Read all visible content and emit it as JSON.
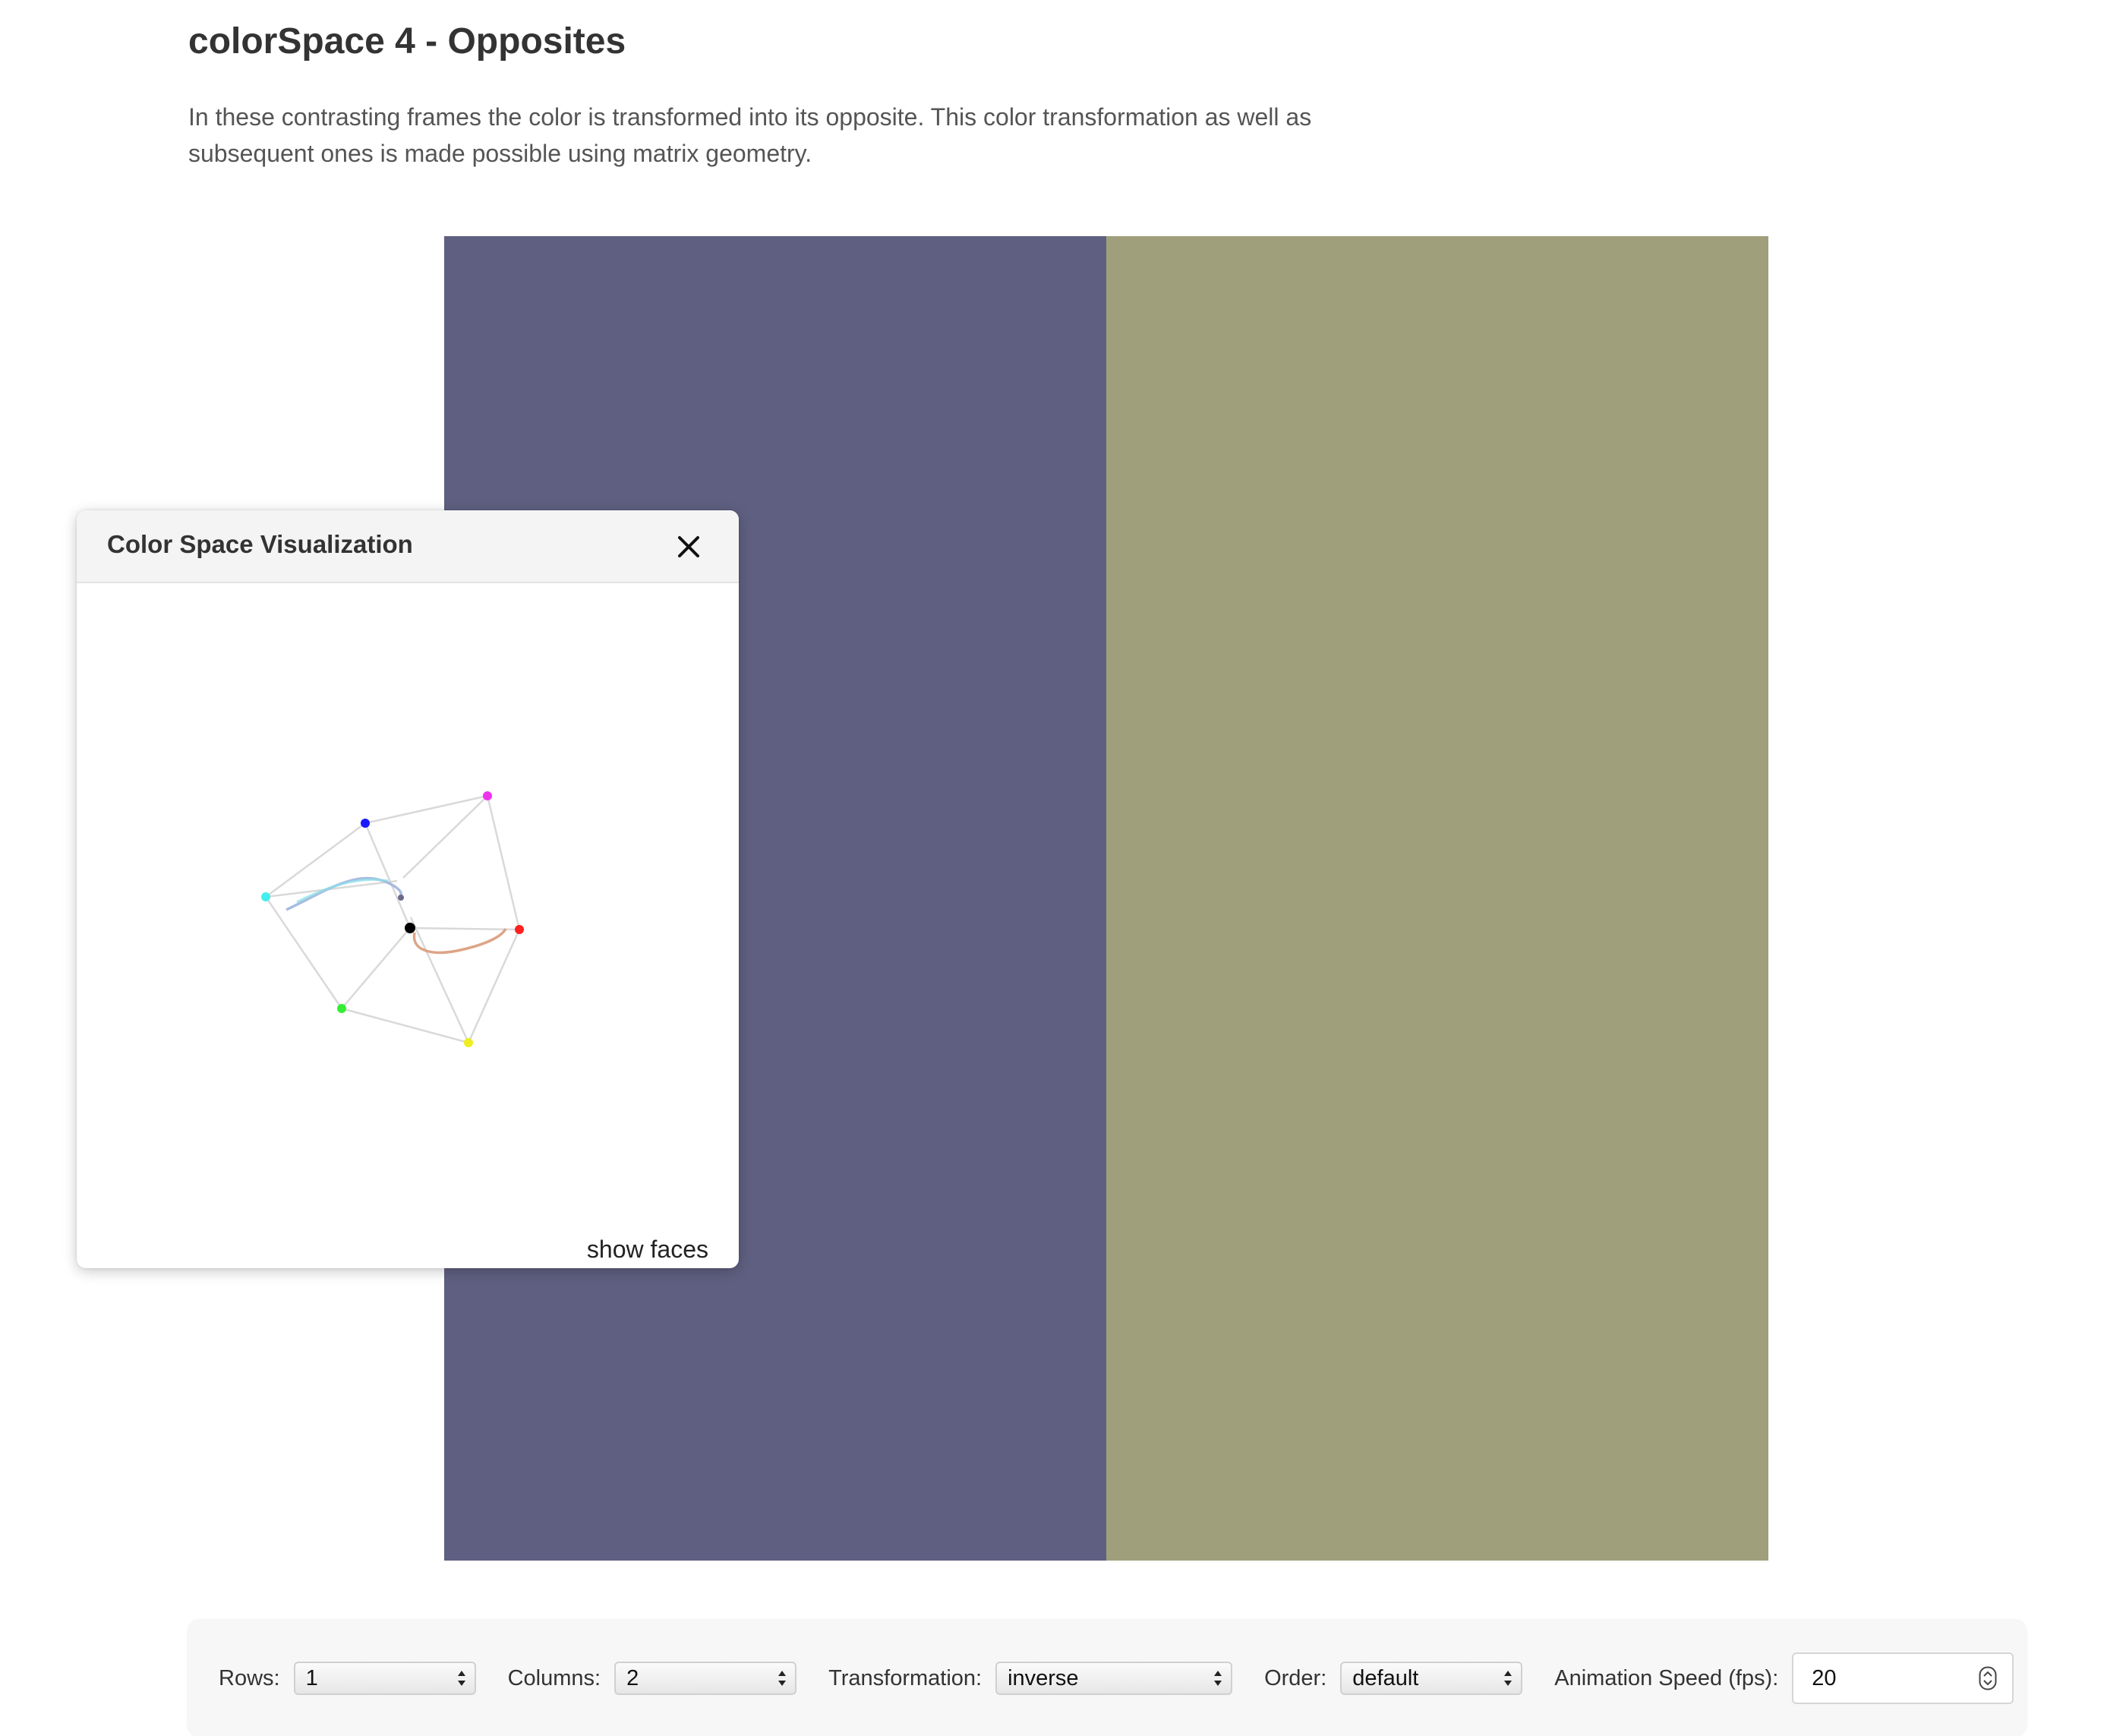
{
  "header": {
    "title": "colorSpace 4 - Opposites",
    "description": "In these contrasting frames the color is transformed into its opposite. This color transformation as well as subsequent ones is made possible using matrix geometry."
  },
  "frames": [
    {
      "color": "#5f5f81"
    },
    {
      "color": "#9fa07b"
    }
  ],
  "visualization": {
    "title": "Color Space Visualization",
    "close_icon": "close-icon",
    "show_faces_label": "show faces",
    "cube_vertex_colors": {
      "black": "#000000",
      "red": "#ff0000",
      "green": "#00ff00",
      "blue": "#0000ff",
      "cyan": "#00ffff",
      "magenta": "#ff00ff",
      "yellow": "#ffff00"
    }
  },
  "controls": {
    "rows": {
      "label": "Rows:",
      "value": "1"
    },
    "columns": {
      "label": "Columns:",
      "value": "2"
    },
    "transformation": {
      "label": "Transformation:",
      "value": "inverse"
    },
    "order": {
      "label": "Order:",
      "value": "default"
    },
    "speed": {
      "label": "Animation Speed (fps):",
      "value": "20"
    }
  }
}
